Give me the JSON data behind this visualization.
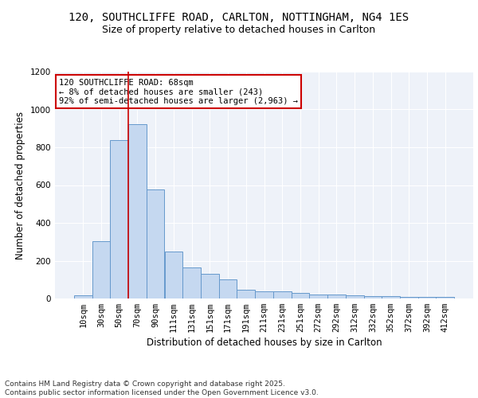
{
  "title_line1": "120, SOUTHCLIFFE ROAD, CARLTON, NOTTINGHAM, NG4 1ES",
  "title_line2": "Size of property relative to detached houses in Carlton",
  "xlabel": "Distribution of detached houses by size in Carlton",
  "ylabel": "Number of detached properties",
  "categories": [
    "10sqm",
    "30sqm",
    "50sqm",
    "70sqm",
    "90sqm",
    "111sqm",
    "131sqm",
    "151sqm",
    "171sqm",
    "191sqm",
    "211sqm",
    "231sqm",
    "251sqm",
    "272sqm",
    "292sqm",
    "312sqm",
    "332sqm",
    "352sqm",
    "372sqm",
    "392sqm",
    "412sqm"
  ],
  "values": [
    18,
    305,
    840,
    920,
    575,
    248,
    163,
    130,
    100,
    48,
    38,
    38,
    28,
    22,
    22,
    18,
    14,
    12,
    9,
    9,
    9
  ],
  "bar_color": "#c5d8f0",
  "bar_edge_color": "#6699cc",
  "background_color": "#eef2f9",
  "grid_color": "#ffffff",
  "annotation_box_text": "120 SOUTHCLIFFE ROAD: 68sqm\n← 8% of detached houses are smaller (243)\n92% of semi-detached houses are larger (2,963) →",
  "annotation_box_color": "#ffffff",
  "annotation_box_edge_color": "#cc0000",
  "vline_color": "#cc0000",
  "ylim": [
    0,
    1200
  ],
  "yticks": [
    0,
    200,
    400,
    600,
    800,
    1000,
    1200
  ],
  "footer_text": "Contains HM Land Registry data © Crown copyright and database right 2025.\nContains public sector information licensed under the Open Government Licence v3.0.",
  "title_fontsize": 10,
  "subtitle_fontsize": 9,
  "axis_label_fontsize": 8.5,
  "tick_fontsize": 7.5,
  "annotation_fontsize": 7.5,
  "footer_fontsize": 6.5
}
